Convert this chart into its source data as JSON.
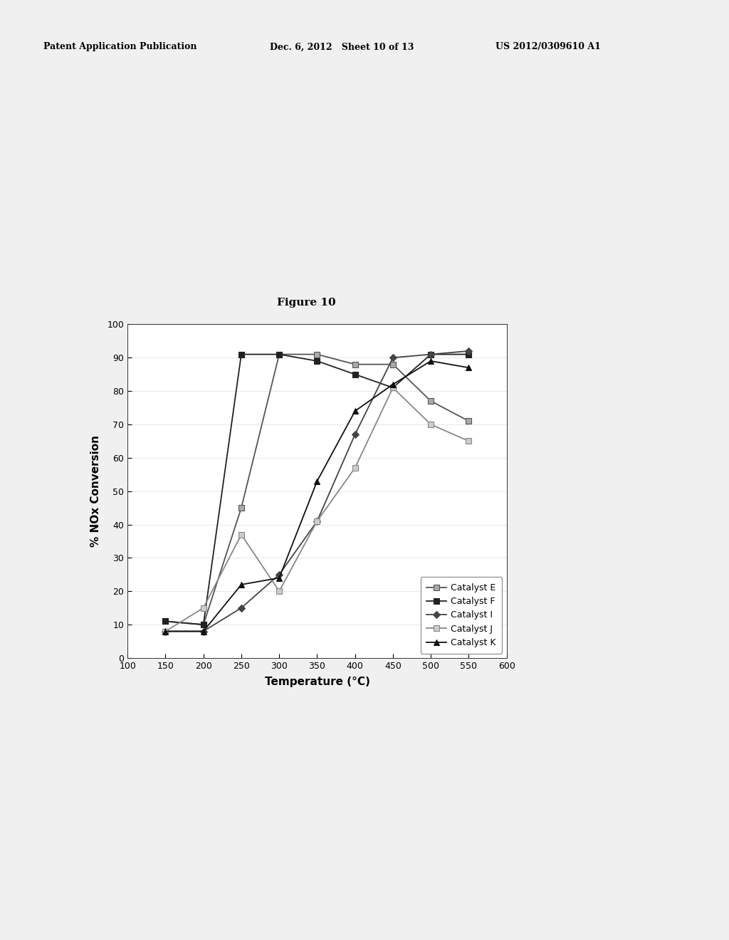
{
  "title": "Figure 10",
  "xlabel": "Temperature (°C)",
  "ylabel": "% NOx Conversion",
  "xlim": [
    100,
    600
  ],
  "ylim": [
    0,
    100
  ],
  "xticks": [
    100,
    150,
    200,
    250,
    300,
    350,
    400,
    450,
    500,
    550,
    600
  ],
  "yticks": [
    0,
    10,
    20,
    30,
    40,
    50,
    60,
    70,
    80,
    90,
    100
  ],
  "background_color": "#f5f5f5",
  "plot_bg": "#ffffff",
  "header_left": "Patent Application Publication",
  "header_mid": "Dec. 6, 2012   Sheet 10 of 13",
  "header_right": "US 2012/0309610 A1",
  "series": [
    {
      "label": "Catalyst E",
      "x": [
        150,
        200,
        250,
        300,
        350,
        400,
        450,
        500,
        550
      ],
      "y": [
        11,
        10,
        45,
        91,
        91,
        88,
        88,
        77,
        71
      ],
      "color": "#555555",
      "marker": "s",
      "marker_size": 6,
      "marker_face": "#aaaaaa",
      "marker_edge": "#555555",
      "linestyle": "-",
      "linewidth": 1.3
    },
    {
      "label": "Catalyst F",
      "x": [
        150,
        200,
        250,
        300,
        350,
        400,
        450,
        500,
        550
      ],
      "y": [
        11,
        10,
        91,
        91,
        89,
        85,
        81,
        91,
        91
      ],
      "color": "#222222",
      "marker": "s",
      "marker_size": 6,
      "marker_face": "#222222",
      "marker_edge": "#222222",
      "linestyle": "-",
      "linewidth": 1.3
    },
    {
      "label": "Catalyst I",
      "x": [
        150,
        200,
        250,
        300,
        350,
        400,
        450,
        500,
        550
      ],
      "y": [
        8,
        8,
        15,
        25,
        41,
        67,
        90,
        91,
        92
      ],
      "color": "#444444",
      "marker": "D",
      "marker_size": 5,
      "marker_face": "#444444",
      "marker_edge": "#444444",
      "linestyle": "-",
      "linewidth": 1.3
    },
    {
      "label": "Catalyst J",
      "x": [
        150,
        200,
        250,
        300,
        350,
        400,
        450,
        500,
        550
      ],
      "y": [
        8,
        15,
        37,
        20,
        41,
        57,
        81,
        70,
        65
      ],
      "color": "#888888",
      "marker": "s",
      "marker_size": 6,
      "marker_face": "#cccccc",
      "marker_edge": "#888888",
      "linestyle": "-",
      "linewidth": 1.3
    },
    {
      "label": "Catalyst K",
      "x": [
        150,
        200,
        250,
        300,
        350,
        400,
        450,
        500,
        550
      ],
      "y": [
        8,
        8,
        22,
        24,
        53,
        74,
        82,
        89,
        87
      ],
      "color": "#111111",
      "marker": "^",
      "marker_size": 6,
      "marker_face": "#111111",
      "marker_edge": "#111111",
      "linestyle": "-",
      "linewidth": 1.3
    }
  ]
}
